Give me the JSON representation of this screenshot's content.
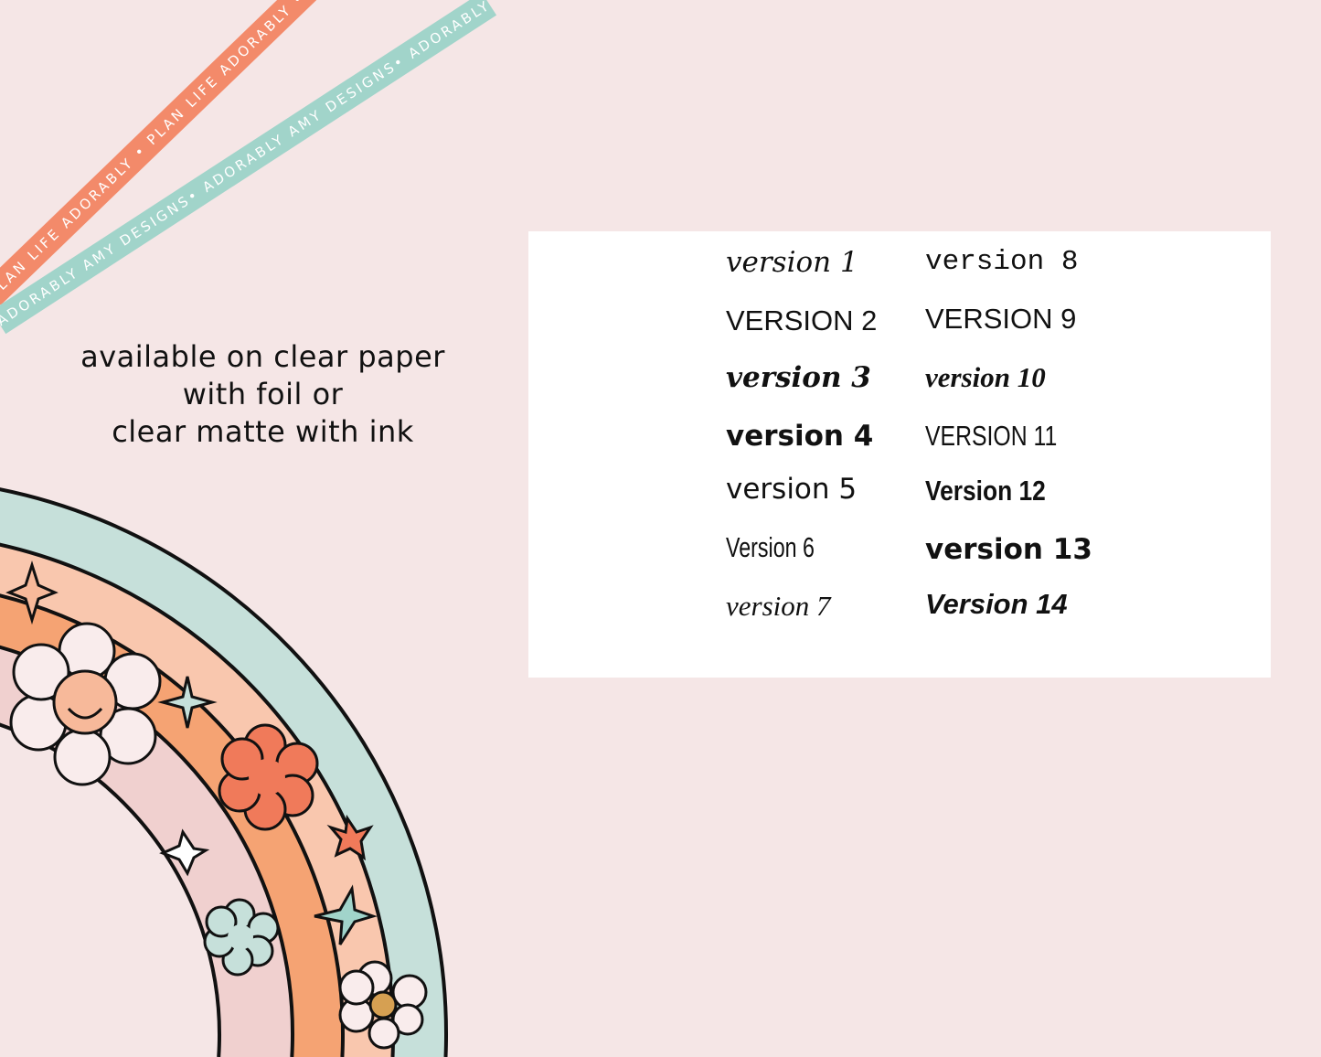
{
  "ribbons": {
    "orange": "PLAN LIFE ADORABLY • PLAN LIFE ADORABLY • PLAN LIFE ADORABLY",
    "teal": "ADORABLY AMY DESIGNS• ADORABLY AMY DESIGNS• ADORABLY AMY DESIGNS"
  },
  "availability": {
    "line1": "available on clear paper",
    "line2": "with foil or",
    "line3": "clear matte with ink"
  },
  "versions": [
    "version 1",
    "VERSION 2",
    "version 3",
    "version 4",
    "version 5",
    "Version 6",
    "version 7",
    "version 8",
    "VERSION 9",
    "version 10",
    "VERSION 11",
    "Version 12",
    "version 13",
    "Version 14"
  ],
  "colors": {
    "background": "#f5e6e6",
    "orange": "#f38a6a",
    "teal": "#a1d4ca",
    "panel": "#ffffff"
  }
}
